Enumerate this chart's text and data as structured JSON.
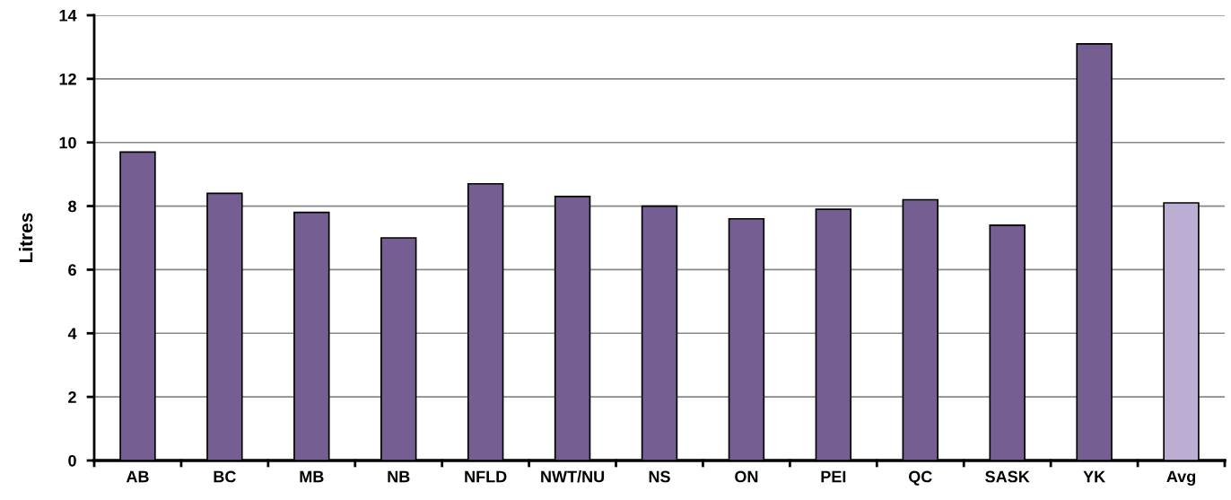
{
  "chart_data": {
    "type": "bar",
    "ylabel": "Litres",
    "categories": [
      "AB",
      "BC",
      "MB",
      "NB",
      "NFLD",
      "NWT/NU",
      "NS",
      "ON",
      "PEI",
      "QC",
      "SASK",
      "YK",
      "Avg"
    ],
    "values": [
      9.7,
      8.4,
      7.8,
      7.0,
      8.7,
      8.3,
      8.0,
      7.6,
      7.9,
      8.2,
      7.4,
      13.1,
      8.1
    ],
    "colors": [
      "#755f92",
      "#755f92",
      "#755f92",
      "#755f92",
      "#755f92",
      "#755f92",
      "#755f92",
      "#755f92",
      "#755f92",
      "#755f92",
      "#755f92",
      "#755f92",
      "#bcadd2"
    ],
    "ylim": [
      0,
      14
    ],
    "yticks": [
      0,
      2,
      4,
      6,
      8,
      10,
      12,
      14
    ],
    "grid": "y",
    "legend": false
  }
}
